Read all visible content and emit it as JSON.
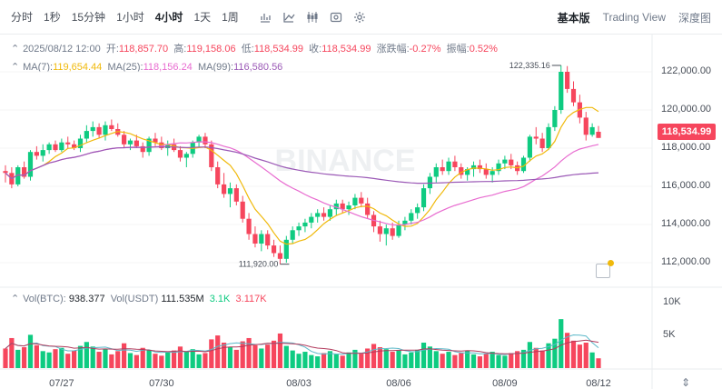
{
  "toolbar": {
    "timeframes": [
      "分时",
      "1秒",
      "15分钟",
      "1小时",
      "4小时",
      "1天",
      "1周"
    ],
    "active_timeframe": "4小时",
    "views": [
      "基本版",
      "Trading View",
      "深度图"
    ],
    "active_view": "基本版"
  },
  "info": {
    "date": "2025/08/12 12:00",
    "open_label": "开:",
    "open": "118,857.70",
    "high_label": "高:",
    "high": "119,158.06",
    "low_label": "低:",
    "low": "118,534.99",
    "close_label": "收:",
    "close": "118,534.99",
    "change_label": "涨跌幅:",
    "change": "-0.27%",
    "amp_label": "振幅:",
    "amp": "0.52%"
  },
  "ma": {
    "ma7_label": "MA(7):",
    "ma7": "119,654.44",
    "ma25_label": "MA(25):",
    "ma25": "118,156.24",
    "ma99_label": "MA(99):",
    "ma99": "116,580.56"
  },
  "vol": {
    "btc_label": "Vol(BTC):",
    "btc": "938.377",
    "usdt_label": "Vol(USDT)",
    "usdt": "111.535M",
    "v1": "3.1K",
    "v2": "3.117K"
  },
  "price_axis": [
    "122,000.00",
    "120,000.00",
    "118,000.00",
    "116,000.00",
    "114,000.00",
    "112,000.00"
  ],
  "vol_axis": [
    "10K",
    "5K"
  ],
  "current_price": "118,534.99",
  "high_marker": "122,335.16",
  "low_marker": "111,920.00",
  "watermark": "BINANCE",
  "dates": [
    "07/27",
    "07/30",
    "08/03",
    "08/06",
    "08/09",
    "08/12"
  ],
  "colors": {
    "up": "#0ecb81",
    "down": "#f6465d",
    "ma7": "#f0b90b",
    "ma25": "#e86cd0",
    "ma99": "#9b59b6"
  },
  "chart_data": {
    "type": "candlestick",
    "interval": "4h",
    "ylim": [
      111000,
      123000
    ],
    "note_markers": {
      "high": 122335.16,
      "low": 111920.0
    },
    "candles": [
      [
        116800,
        117100,
        116200,
        116700
      ],
      [
        116700,
        117000,
        115900,
        116100
      ],
      [
        116100,
        117100,
        116000,
        117000
      ],
      [
        117000,
        117300,
        116400,
        116500
      ],
      [
        116500,
        117900,
        116300,
        117800
      ],
      [
        117800,
        118100,
        117400,
        117600
      ],
      [
        117600,
        118200,
        117300,
        117900
      ],
      [
        117900,
        118300,
        117700,
        118200
      ],
      [
        118200,
        118400,
        117800,
        117900
      ],
      [
        117900,
        118500,
        117800,
        118300
      ],
      [
        118300,
        118600,
        118000,
        118200
      ],
      [
        118200,
        118400,
        117900,
        118000
      ],
      [
        118000,
        118700,
        117800,
        118500
      ],
      [
        118500,
        119200,
        118300,
        118900
      ],
      [
        118900,
        119400,
        118600,
        119100
      ],
      [
        119100,
        119300,
        118500,
        118700
      ],
      [
        118700,
        119400,
        118400,
        119200
      ],
      [
        119200,
        119500,
        118900,
        119000
      ],
      [
        119000,
        119300,
        118600,
        118700
      ],
      [
        118700,
        118900,
        118000,
        118200
      ],
      [
        118200,
        118500,
        117900,
        118400
      ],
      [
        118400,
        118700,
        118000,
        118100
      ],
      [
        118100,
        118300,
        117500,
        117800
      ],
      [
        117800,
        118600,
        117600,
        118500
      ],
      [
        118500,
        118800,
        118100,
        118300
      ],
      [
        118300,
        118600,
        117900,
        118000
      ],
      [
        118000,
        118400,
        117600,
        118200
      ],
      [
        118200,
        118500,
        117800,
        117900
      ],
      [
        117900,
        118100,
        117300,
        117500
      ],
      [
        117500,
        117800,
        117000,
        117700
      ],
      [
        117700,
        118400,
        117500,
        118300
      ],
      [
        118300,
        118700,
        118000,
        118600
      ],
      [
        118600,
        118800,
        118000,
        118200
      ],
      [
        118200,
        118400,
        116800,
        117000
      ],
      [
        117000,
        117300,
        115900,
        116100
      ],
      [
        116100,
        116700,
        115400,
        115600
      ],
      [
        115600,
        116200,
        114900,
        115900
      ],
      [
        115900,
        116100,
        115000,
        115200
      ],
      [
        115200,
        115500,
        114100,
        114300
      ],
      [
        114300,
        114600,
        113200,
        113500
      ],
      [
        113500,
        113900,
        112800,
        113000
      ],
      [
        113000,
        113700,
        112600,
        113500
      ],
      [
        113500,
        113700,
        112700,
        112900
      ],
      [
        112900,
        113200,
        112300,
        112500
      ],
      [
        112500,
        112900,
        111920,
        112200
      ],
      [
        112200,
        113400,
        112000,
        113200
      ],
      [
        113200,
        113900,
        113000,
        113700
      ],
      [
        113700,
        114100,
        113400,
        113900
      ],
      [
        113900,
        114300,
        113600,
        114100
      ],
      [
        114100,
        114600,
        113800,
        114400
      ],
      [
        114400,
        114800,
        114100,
        114600
      ],
      [
        114600,
        114900,
        114200,
        114400
      ],
      [
        114400,
        115000,
        114200,
        114800
      ],
      [
        114800,
        115300,
        114500,
        115100
      ],
      [
        115100,
        115300,
        114600,
        114800
      ],
      [
        114800,
        115200,
        114500,
        115000
      ],
      [
        115000,
        115600,
        114800,
        115400
      ],
      [
        115400,
        115700,
        114900,
        115100
      ],
      [
        115100,
        115400,
        114300,
        114500
      ],
      [
        114500,
        114700,
        113600,
        113900
      ],
      [
        113900,
        114200,
        113100,
        113500
      ],
      [
        113500,
        114000,
        112900,
        113800
      ],
      [
        113800,
        114100,
        113200,
        113400
      ],
      [
        113400,
        114200,
        113300,
        114000
      ],
      [
        114000,
        114400,
        113700,
        114200
      ],
      [
        114200,
        114800,
        114000,
        114600
      ],
      [
        114600,
        115100,
        114300,
        114900
      ],
      [
        114900,
        116100,
        114700,
        115900
      ],
      [
        115900,
        116700,
        115600,
        116500
      ],
      [
        116500,
        117200,
        116200,
        117000
      ],
      [
        117000,
        117400,
        116600,
        116800
      ],
      [
        116800,
        117500,
        116600,
        117300
      ],
      [
        117300,
        117600,
        116800,
        117000
      ],
      [
        117000,
        117200,
        116400,
        116600
      ],
      [
        116600,
        117000,
        116300,
        116900
      ],
      [
        116900,
        117300,
        116500,
        117100
      ],
      [
        117100,
        117400,
        116700,
        116900
      ],
      [
        116900,
        117200,
        116400,
        116600
      ],
      [
        116600,
        117000,
        116200,
        116800
      ],
      [
        116800,
        117400,
        116600,
        117200
      ],
      [
        117200,
        117600,
        116900,
        117400
      ],
      [
        117400,
        117700,
        116900,
        117100
      ],
      [
        117100,
        117300,
        116600,
        116800
      ],
      [
        116800,
        117600,
        116700,
        117500
      ],
      [
        117500,
        118700,
        117300,
        118600
      ],
      [
        118600,
        119100,
        118200,
        118500
      ],
      [
        118500,
        118800,
        117800,
        118000
      ],
      [
        118000,
        119300,
        117900,
        119100
      ],
      [
        119100,
        120200,
        118900,
        120000
      ],
      [
        120000,
        122335.16,
        119800,
        122000
      ],
      [
        122000,
        122300,
        120900,
        121100
      ],
      [
        121100,
        121500,
        120200,
        120400
      ],
      [
        120400,
        120800,
        119300,
        119600
      ],
      [
        119600,
        119900,
        118400,
        118700
      ],
      [
        118700,
        119300,
        118600,
        119100
      ],
      [
        118857.7,
        119158.06,
        118534.99,
        118534.99
      ]
    ],
    "volume": [
      3.0,
      4.6,
      2.8,
      3.2,
      5.1,
      3.5,
      2.6,
      2.4,
      2.9,
      3.1,
      2.2,
      2.7,
      3.4,
      4.0,
      3.3,
      2.5,
      2.9,
      2.1,
      2.6,
      3.8,
      2.3,
      2.0,
      3.1,
      2.8,
      2.2,
      1.9,
      2.4,
      2.7,
      3.3,
      2.5,
      2.9,
      2.1,
      2.3,
      4.4,
      5.0,
      3.9,
      3.2,
      2.8,
      4.1,
      4.6,
      3.5,
      3.0,
      3.6,
      4.2,
      5.3,
      3.4,
      2.7,
      2.2,
      2.5,
      2.0,
      1.8,
      2.3,
      2.6,
      2.1,
      1.9,
      2.4,
      2.8,
      2.2,
      3.0,
      3.7,
      3.2,
      2.9,
      2.5,
      2.7,
      2.1,
      2.4,
      2.8,
      3.9,
      3.3,
      2.6,
      2.2,
      2.5,
      2.0,
      2.3,
      2.7,
      2.1,
      1.8,
      2.2,
      2.5,
      2.0,
      1.9,
      2.3,
      2.6,
      2.8,
      4.0,
      3.1,
      2.7,
      3.8,
      4.5,
      7.5,
      5.4,
      4.2,
      3.6,
      3.9,
      2.4,
      1.5
    ],
    "ma7_last": 119654.44,
    "ma25_last": 118156.24,
    "ma99_last": 116580.56
  }
}
